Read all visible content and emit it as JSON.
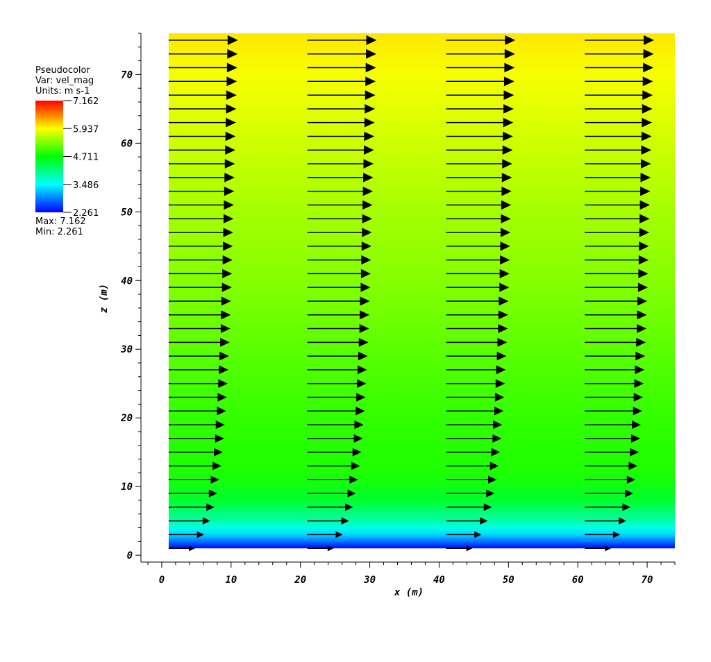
{
  "chart_data": {
    "type": "heatmap",
    "subtype": "pseudocolor-with-vector-glyphs",
    "xlabel": "x  (m)",
    "ylabel": "z  (m)",
    "xlim": [
      -3,
      74
    ],
    "ylim": [
      -1,
      76
    ],
    "data_extent": {
      "x": [
        1,
        74
      ],
      "z": [
        1,
        76
      ]
    },
    "x_major_ticks": [
      0,
      10,
      20,
      30,
      40,
      50,
      60,
      70
    ],
    "y_major_ticks": [
      0,
      10,
      20,
      30,
      40,
      50,
      60,
      70
    ],
    "x_minor_step": 2,
    "y_minor_step": 2,
    "legend": {
      "title": "Pseudocolor",
      "var_line": "Var: vel_mag",
      "units_line": "Units: m s-1",
      "tick_labels": [
        "7.162",
        "5.937",
        "4.711",
        "3.486",
        "2.261"
      ],
      "max_line": "Max:  7.162",
      "min_line": "Min:  2.261",
      "max": 7.162,
      "min": 2.261,
      "placement": "top-left",
      "colormap": [
        "#0000ff",
        "#00ffff",
        "#00ff00",
        "#ffff00",
        "#ff0000"
      ]
    },
    "field_profile": {
      "z": [
        1,
        2,
        3,
        4,
        5,
        6,
        8,
        12,
        16,
        20,
        30,
        40,
        50,
        60,
        70,
        76
      ],
      "vel_mag": [
        2.3,
        2.8,
        3.3,
        3.6,
        3.9,
        4.1,
        4.5,
        4.85,
        4.9,
        4.95,
        5.15,
        5.35,
        5.5,
        5.7,
        5.9,
        6.05
      ]
    },
    "vectors": {
      "x_columns": [
        1,
        21,
        41,
        61
      ],
      "z_rows": [
        1,
        3,
        5,
        7,
        9,
        11,
        13,
        15,
        17,
        19,
        21,
        23,
        25,
        27,
        29,
        31,
        33,
        35,
        37,
        39,
        41,
        43,
        45,
        47,
        49,
        51,
        53,
        55,
        57,
        59,
        61,
        63,
        65,
        67,
        69,
        71,
        73,
        75
      ],
      "lengths_m": [
        3.8,
        5.1,
        6.0,
        6.6,
        7.0,
        7.3,
        7.6,
        7.8,
        8.0,
        8.1,
        8.3,
        8.4,
        8.5,
        8.6,
        8.7,
        8.8,
        8.9,
        8.95,
        9.0,
        9.1,
        9.15,
        9.2,
        9.25,
        9.3,
        9.35,
        9.4,
        9.45,
        9.5,
        9.55,
        9.6,
        9.65,
        9.7,
        9.75,
        9.8,
        9.85,
        9.9,
        9.95,
        10.0
      ],
      "direction": "+x",
      "color": "#000000"
    }
  }
}
